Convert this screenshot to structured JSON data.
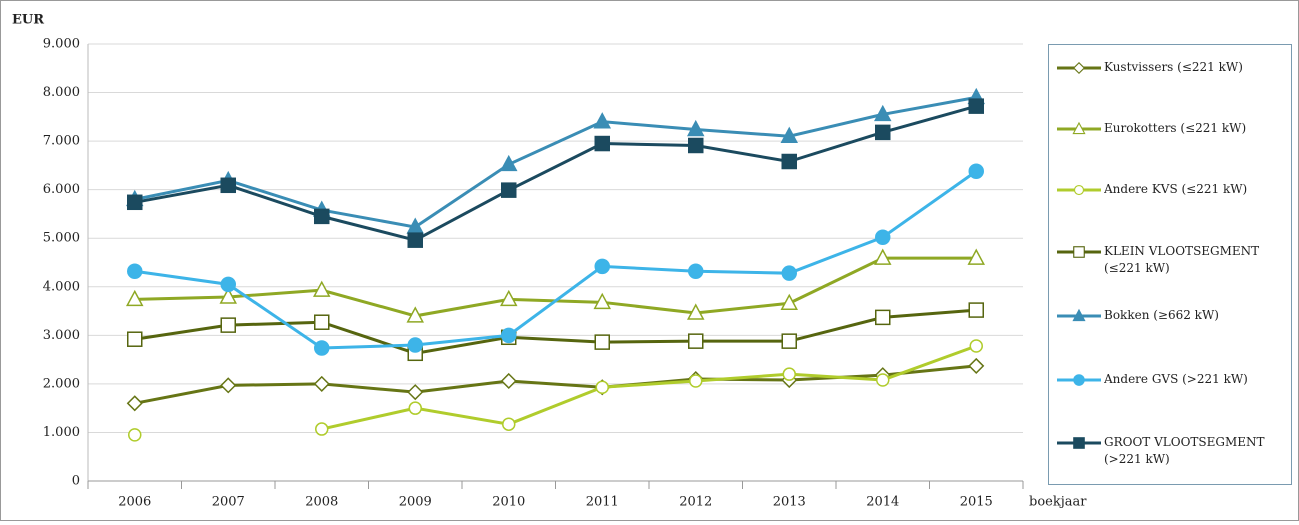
{
  "chart_data": {
    "type": "line",
    "y_label": "EUR",
    "x_label": "boekjaar",
    "categories": [
      "2006",
      "2007",
      "2008",
      "2009",
      "2010",
      "2011",
      "2012",
      "2013",
      "2014",
      "2015"
    ],
    "ylim": [
      0,
      9000
    ],
    "yticks": [
      0,
      {
        "value": 1000,
        "label": "1.000"
      },
      {
        "value": 2000,
        "label": "2.000"
      },
      {
        "value": 3000,
        "label": "3.000"
      },
      {
        "value": 4000,
        "label": "4.000"
      },
      {
        "value": 5000,
        "label": "5.000"
      },
      {
        "value": 6000,
        "label": "6.000"
      },
      {
        "value": 7000,
        "label": "7.000"
      },
      {
        "value": 8000,
        "label": "8.000"
      },
      {
        "value": 9000,
        "label": "9.000"
      }
    ],
    "grid": true,
    "legend": "right",
    "series": [
      {
        "name": "Kustvissers (≤221 kW)",
        "color": "#667515",
        "marker": "diamond",
        "filled": false,
        "values": [
          1600,
          1970,
          2000,
          1830,
          2060,
          1930,
          2100,
          2080,
          2180,
          2370
        ]
      },
      {
        "name": "Eurokotters (≤221 kW)",
        "color": "#8fa824",
        "marker": "triangle",
        "filled": false,
        "values": [
          3740,
          3790,
          3930,
          3400,
          3740,
          3680,
          3460,
          3660,
          4590,
          4590
        ]
      },
      {
        "name": "Andere KVS (≤221 kW)",
        "color": "#b0cc2c",
        "marker": "circle",
        "filled": false,
        "values": [
          950,
          null,
          1070,
          1500,
          1170,
          1930,
          2060,
          2200,
          2080,
          2780
        ]
      },
      {
        "name": "KLEIN VLOOTSEGMENT (≤221 kW)",
        "color": "#56650f",
        "marker": "square",
        "filled": false,
        "values": [
          2920,
          3210,
          3270,
          2630,
          2960,
          2860,
          2880,
          2880,
          3370,
          3520
        ]
      },
      {
        "name": "Bokken (≥662 kW)",
        "color": "#3a8db5",
        "marker": "triangle",
        "filled": true,
        "values": [
          5800,
          6190,
          5580,
          5230,
          6520,
          7400,
          7240,
          7100,
          7550,
          7900
        ]
      },
      {
        "name": "Andere GVS (>221 kW)",
        "color": "#3db4e8",
        "marker": "circle",
        "filled": true,
        "values": [
          4320,
          4050,
          2740,
          2800,
          3000,
          4420,
          4320,
          4280,
          5020,
          6380
        ]
      },
      {
        "name": "GROOT VLOOTSEGMENT (>221 kW)",
        "color": "#1b4a5f",
        "marker": "square",
        "filled": true,
        "values": [
          5740,
          6090,
          5450,
          4960,
          5990,
          6950,
          6910,
          6580,
          7180,
          7720
        ]
      }
    ]
  }
}
